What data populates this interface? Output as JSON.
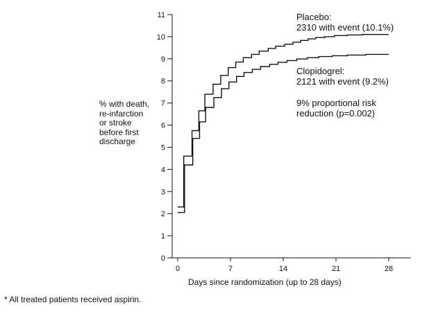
{
  "chart_data": {
    "type": "line",
    "title": "",
    "xlabel": "Days since randomization (up to 28 days)",
    "ylabel": [
      "% with death,",
      "re-infarction",
      "or stroke",
      "before first",
      "discharge"
    ],
    "xlim": [
      0,
      28
    ],
    "ylim": [
      0,
      11
    ],
    "xticks": [
      0,
      7,
      14,
      21,
      28
    ],
    "yticks": [
      0,
      1,
      2,
      3,
      4,
      5,
      6,
      7,
      8,
      9,
      10,
      11
    ],
    "grid": false,
    "step": true,
    "series": [
      {
        "name": "Placebo",
        "color": "#111111",
        "x": [
          0,
          0.8,
          1.9,
          2.8,
          3.6,
          4.7,
          5.7,
          6.7,
          7.7,
          8.7,
          9.8,
          10.8,
          12,
          13,
          14.2,
          15.3,
          16.3,
          17.3,
          18.3,
          19.5,
          20.8,
          22.5,
          24.5,
          28
        ],
        "y": [
          2.3,
          4.6,
          5.75,
          6.65,
          7.4,
          7.85,
          8.25,
          8.6,
          8.85,
          9.05,
          9.2,
          9.35,
          9.47,
          9.57,
          9.66,
          9.75,
          9.83,
          9.9,
          9.96,
          10.0,
          10.05,
          10.08,
          10.1,
          10.1
        ]
      },
      {
        "name": "Clopidogrel",
        "color": "#111111",
        "x": [
          0,
          0.9,
          2,
          2.9,
          3.7,
          4.8,
          5.8,
          6.8,
          7.8,
          8.8,
          9.9,
          11,
          12.2,
          13.3,
          14.5,
          15.8,
          17.2,
          18.7,
          20.5,
          22.5,
          25,
          28
        ],
        "y": [
          2.05,
          4.2,
          5.4,
          6.15,
          6.8,
          7.25,
          7.65,
          7.95,
          8.2,
          8.38,
          8.52,
          8.65,
          8.75,
          8.84,
          8.92,
          8.99,
          9.05,
          9.1,
          9.14,
          9.17,
          9.2,
          9.2
        ]
      }
    ],
    "annotations": {
      "placebo": [
        "Placebo:",
        "2310 with event (10.1%)"
      ],
      "clopidogrel": [
        "Clopidogrel:",
        "2121 with event (9.2%)"
      ],
      "risk": [
        "9% proportional risk",
        "reduction (p=0.002)"
      ]
    },
    "footnote": "* All treated patients received aspirin."
  }
}
